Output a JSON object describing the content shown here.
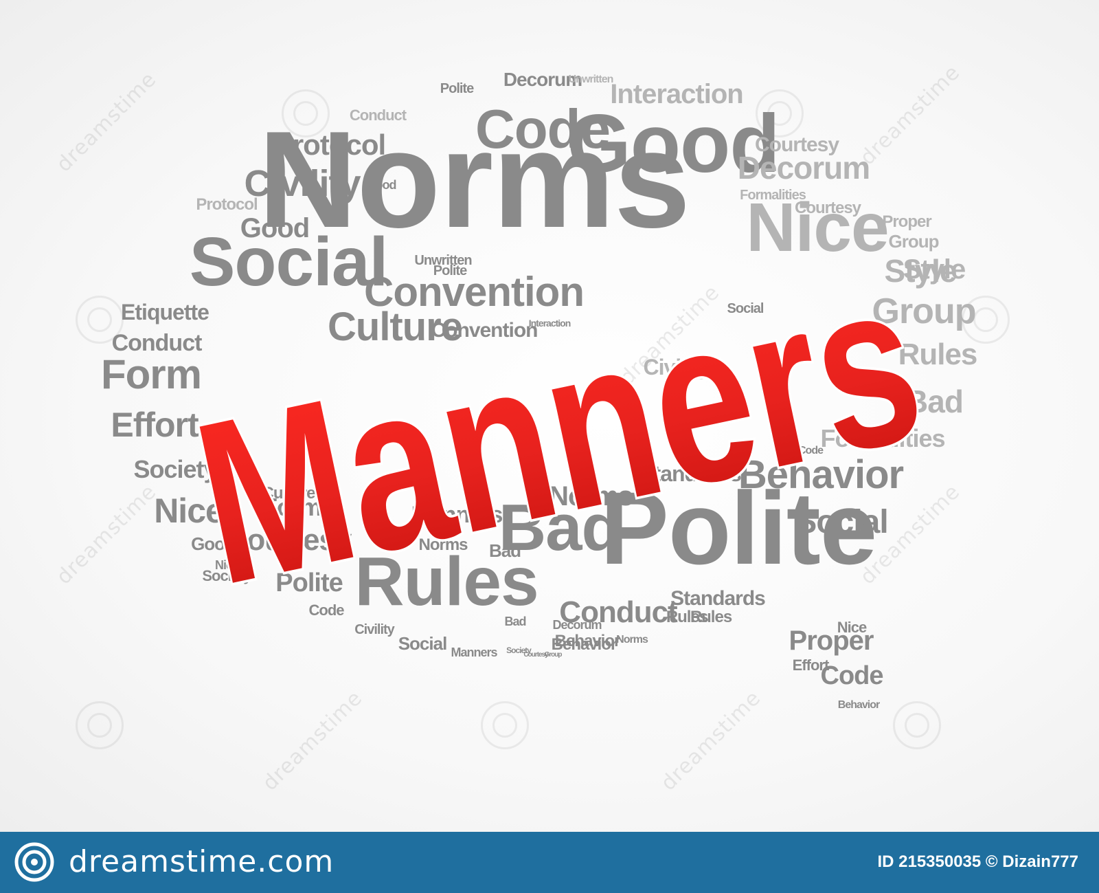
{
  "main_word": "Manners",
  "colors": {
    "main": "#e8221e",
    "words_dark": "#8a8a8a",
    "words_light": "#b4b4b4",
    "footer": "#1f6f9f"
  },
  "words": [
    "Norms",
    "Good",
    "Code",
    "Interaction",
    "Decorum",
    "Unwritten",
    "Polite",
    "Conduct",
    "Protocol",
    "Civility",
    "Social",
    "Nice",
    "Style",
    "Convention",
    "Culture",
    "Etiquette",
    "Conduct",
    "Form",
    "Effort",
    "Society",
    "Courtesy",
    "Nice",
    "Good",
    "Rules",
    "Bad",
    "Polite",
    "Norms",
    "Manners",
    "Behavior",
    "Standards",
    "Formalities",
    "Group",
    "Rules",
    "Bad",
    "Proper",
    "Code",
    "Decorum",
    "Courtesy",
    "Group",
    "Style",
    "Social",
    "Behavior",
    "Nice",
    "Proper",
    "Effort",
    "Code",
    "Behavior",
    "Society",
    "Rules",
    "Civility",
    "Social",
    "Manners",
    "Society",
    "Courtesy",
    "Group",
    "Behavior",
    "Norms",
    "Conduct",
    "Bad",
    "Decorum",
    "Polite",
    "Code",
    "Good",
    "Nice",
    "Courtesy",
    "Civility",
    "Protocol",
    "Convention",
    "Formalities",
    "Standards",
    "Interaction",
    "Unwritten",
    "Culture",
    "Form",
    "Good",
    "Norms",
    "Rules",
    "Polite",
    "Bad",
    "Social"
  ],
  "footer": {
    "brand": "dreamstime.com",
    "id_text": "ID 215350035 © Dizain777"
  },
  "watermark": "dreamstime"
}
